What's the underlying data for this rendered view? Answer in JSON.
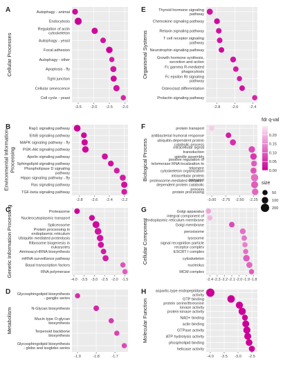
{
  "figure": {
    "colors": {
      "low": "#cc0099",
      "high": "#fde7f4",
      "panel_bg": "#ebebeb",
      "grid": "#ffffff"
    }
  },
  "legend": {
    "color_title": "fdr q-val",
    "color_ticks": [
      "0.20",
      "0.15",
      "0.10",
      "0.05",
      "0.00"
    ],
    "color_tick_values": [
      0.2,
      0.15,
      0.1,
      0.05,
      0.0
    ],
    "color_range": [
      0,
      0.25
    ],
    "size_title": "size",
    "size_labels": [
      "50",
      "100",
      "200"
    ],
    "size_values": [
      50,
      100,
      200
    ]
  },
  "chart_data": [
    {
      "type": "scatter",
      "letter": "A",
      "category": "Cellular Processes",
      "xlim": [
        -3.7,
        -1.9
      ],
      "xticks": [
        -3.5,
        -3.0,
        -2.5,
        -2.0
      ],
      "xtick_labels": [
        "-3.5",
        "-3.0",
        "-2.5",
        "-2.0"
      ],
      "terms": [
        "Autophagy - animal",
        "Endocytosis",
        "Regulation of actin\ncytoskeleton",
        "Autophagy - yeast",
        "Focal adhesion",
        "Autophagy - other",
        "Apoptosis - fly",
        "Tight junction",
        "Cellular senescence",
        "Cell cycle - yeast"
      ],
      "x": [
        -3.6,
        -3.5,
        -2.97,
        -2.7,
        -2.5,
        -2.42,
        -2.37,
        -2.36,
        -2.27,
        -2.05
      ],
      "size": [
        70,
        130,
        90,
        60,
        100,
        50,
        80,
        80,
        90,
        50
      ],
      "q": [
        0.01,
        0.0,
        0.01,
        0.02,
        0.0,
        0.03,
        0.02,
        0.01,
        0.02,
        0.04
      ]
    },
    {
      "type": "scatter",
      "letter": "E",
      "category": "Organismal Systems",
      "xlim": [
        -2.92,
        -2.35
      ],
      "xticks": [
        -2.8,
        -2.6,
        -2.4
      ],
      "xtick_labels": [
        "-2.8",
        "-2.6",
        "-2.4"
      ],
      "terms": [
        "Thyroid hormone signaling\npathway",
        "Chemokine signaling pathway",
        "Relaxin signaling pathway",
        "T cell receptor signaling\npathway",
        "Neurotrophin signaling pathway",
        "Growth hormone synthesis,\nsecretion and action",
        "Fc gamma R-mediated\nphagocytosis",
        "Fc epsilon RI signaling\npathway",
        "Osteoclast differentiation",
        "Prolactin signaling pathway"
      ],
      "x": [
        -2.88,
        -2.8,
        -2.78,
        -2.77,
        -2.75,
        -2.62,
        -2.59,
        -2.55,
        -2.52,
        -2.38
      ],
      "size": [
        80,
        70,
        60,
        60,
        60,
        70,
        60,
        50,
        60,
        50
      ],
      "q": [
        0.02,
        0.01,
        0.02,
        0.02,
        0.01,
        0.02,
        0.03,
        0.03,
        0.02,
        0.04
      ]
    },
    {
      "type": "scatter",
      "letter": "B",
      "category": "Environmental Information\nProcessing",
      "xlim": [
        -2.9,
        -2.15
      ],
      "xticks": [
        -2.8,
        -2.6,
        -2.4,
        -2.2
      ],
      "xtick_labels": [
        "-2.8",
        "-2.6",
        "-2.4",
        "-2.2"
      ],
      "terms": [
        "Rap1 signaling pathway",
        "ErbB signaling pathway",
        "MAPK signaling pathway - fly",
        "PI3K-Akt signaling pathway",
        "Apelin signaling pathway",
        "Sphingolipid signaling pathway",
        "Phospholipase D signaling\npathway",
        "Hippo signaling pathway - fly",
        "Ras signaling pathway",
        "TGF-beta signaling pathway"
      ],
      "x": [
        -2.83,
        -2.74,
        -2.73,
        -2.72,
        -2.46,
        -2.38,
        -2.3,
        -2.22,
        -2.2,
        -2.2
      ],
      "size": [
        110,
        70,
        90,
        100,
        80,
        70,
        70,
        80,
        90,
        70
      ],
      "q": [
        0.0,
        0.01,
        0.01,
        0.01,
        0.02,
        0.02,
        0.03,
        0.03,
        0.02,
        0.03
      ]
    },
    {
      "type": "scatter",
      "letter": "F",
      "category": "Biological Process",
      "xlim": [
        -3.1,
        -2.18
      ],
      "xticks": [
        -3.0,
        -2.75,
        -2.5,
        -2.25
      ],
      "xtick_labels": [
        "-3.00",
        "-2.75",
        "-2.50",
        "-2.25"
      ],
      "terms": [
        "protein transport",
        "antibacterial humoral response",
        "ubiquitin-dependent protein\ncatabolic process",
        "intracellular signal\ntransduction",
        "spindle assembly",
        "positive regulation of\ntelomerase RNA localization to\ntelomere",
        "cytoskeleton organization",
        "intracellular protein\ntransport",
        "proteasome-mediated ubiquitin-\ndependent protein catabolic\nprocess",
        "protein processing"
      ],
      "x": [
        -3.0,
        -2.7,
        -2.62,
        -2.28,
        -2.25,
        -2.24,
        -2.25,
        -2.23,
        -2.23,
        -2.22
      ],
      "size": [
        50,
        60,
        80,
        100,
        100,
        70,
        80,
        140,
        120,
        100
      ],
      "q": [
        0.22,
        0.03,
        0.05,
        0.08,
        0.06,
        0.1,
        0.09,
        0.12,
        0.1,
        0.11
      ]
    },
    {
      "type": "scatter",
      "letter": "C",
      "category": "Genetic Information Processing",
      "xlim": [
        -4.1,
        -1.35
      ],
      "xticks": [
        -4.0,
        -3.5,
        -3.0,
        -2.5,
        -2.0,
        -1.5
      ],
      "xtick_labels": [
        "-4.0",
        "-3.5",
        "-3.0",
        "-2.5",
        "-2.0",
        "-1.5"
      ],
      "terms": [
        "Proteasome",
        "Nucleocytoplasmic transport",
        "Spliceosome",
        "Protein processing in\nendoplasmic reticulum",
        "Ubiquitin mediated proteolysis",
        "Ribosome biogenesis in\neukaryotes",
        "Aminoacyl-tRNA biosynthesis",
        "mRNA surveillance pathway",
        "Basal transcription factors",
        "RNA polymerase"
      ],
      "x": [
        -3.85,
        -3.12,
        -2.92,
        -2.82,
        -2.72,
        -2.68,
        -2.55,
        -2.45,
        -1.6,
        -1.5
      ],
      "size": [
        60,
        70,
        120,
        110,
        100,
        80,
        60,
        80,
        50,
        50
      ],
      "q": [
        0.0,
        0.01,
        0.01,
        0.02,
        0.02,
        0.02,
        0.03,
        0.03,
        0.09,
        0.1
      ]
    },
    {
      "type": "scatter",
      "letter": "G",
      "category": "Cellular Component",
      "xlim": [
        -2.45,
        -1.75
      ],
      "xticks": [
        -2.4,
        -2.3,
        -2.2,
        -2.1,
        -2.0,
        -1.9,
        -1.8
      ],
      "xtick_labels": [
        "-2.4",
        "-2.3",
        "-2.2",
        "-2.1",
        "-2.0",
        "-1.9",
        "-1.8"
      ],
      "terms": [
        "Golgi apparatus",
        "integral component of\nendoplasmic reticulum membrane",
        "Golgi membrane",
        "peroxisome",
        "lysosome",
        "signal recognition particle\nreceptor complex",
        "ESCRT I complex",
        "cytoskeleton",
        "nucleolus",
        "MCM complex"
      ],
      "x": [
        -2.42,
        -2.4,
        -2.1,
        -1.95,
        -1.93,
        -1.92,
        -1.91,
        -1.9,
        -1.86,
        -1.83
      ],
      "size": [
        50,
        50,
        60,
        70,
        60,
        50,
        50,
        100,
        80,
        50
      ],
      "q": [
        0.18,
        0.2,
        0.08,
        0.12,
        0.13,
        0.14,
        0.12,
        0.1,
        0.11,
        0.1
      ]
    },
    {
      "type": "scatter",
      "letter": "D",
      "category": "Metabolism",
      "xlim": [
        -1.93,
        -1.63
      ],
      "xticks": [
        -1.9,
        -1.8,
        -1.7
      ],
      "xtick_labels": [
        "-1.9",
        "-1.8",
        "-1.7"
      ],
      "terms": [
        "Glycosphingolipid biosynthesis\n- ganglio series",
        "N-Glycan biosynthesis",
        "Mucin type O-glycan\nbiosynthesis",
        "Terpenoid backbone\nbiosynthesis",
        "Glycosphingolipid biosynthesis\n- globo and isoglobo series"
      ],
      "x": [
        -1.9,
        -1.8,
        -1.72,
        -1.69,
        -1.65
      ],
      "size": [
        50,
        60,
        50,
        50,
        50
      ],
      "q": [
        0.05,
        0.04,
        0.06,
        0.07,
        0.08
      ]
    },
    {
      "type": "scatter",
      "letter": "H",
      "category": "Molecular Function",
      "xlim": [
        -4.15,
        -2.3
      ],
      "xticks": [
        -4.0,
        -3.5,
        -3.0,
        -2.5
      ],
      "xtick_labels": [
        "-4.0",
        "-3.5",
        "-3.0",
        "-2.5"
      ],
      "terms": [
        "aspartic-type endopeptidase\nactivity",
        "GTP binding",
        "protein serine/threonine\nkinase activity",
        "protein kinase activity",
        "NAD+ binding",
        "actin binding",
        "GTPase activity",
        "ATP hydrolysis activity",
        "phospholipid binding",
        "helicase activity"
      ],
      "x": [
        -4.0,
        -3.25,
        -2.95,
        -2.85,
        -2.75,
        -2.72,
        -2.68,
        -2.65,
        -2.6,
        -2.5
      ],
      "size": [
        200,
        150,
        130,
        140,
        70,
        120,
        130,
        120,
        110,
        80
      ],
      "q": [
        0.0,
        0.0,
        0.0,
        0.0,
        0.0,
        0.0,
        0.0,
        0.0,
        0.0,
        0.0
      ]
    }
  ]
}
